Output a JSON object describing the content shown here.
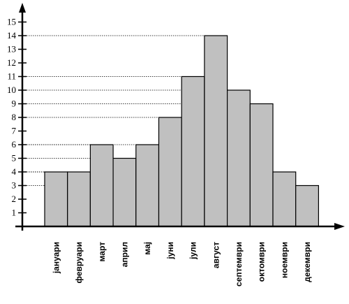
{
  "chart_data": {
    "type": "bar",
    "categories": [
      "јануари",
      "февруари",
      "март",
      "април",
      "мај",
      "јуни",
      "јули",
      "август",
      "септември",
      "октомври",
      "ноември",
      "декември"
    ],
    "values": [
      4,
      4,
      6,
      5,
      6,
      8,
      11,
      14,
      10,
      9,
      4,
      3
    ],
    "yticks": [
      1,
      2,
      3,
      4,
      5,
      6,
      7,
      8,
      9,
      10,
      11,
      12,
      13,
      14,
      15
    ],
    "ylim": [
      0,
      15
    ],
    "title": "",
    "xlabel": "",
    "ylabel": "",
    "grid": "dotted horizontal lines at bar tops",
    "bar_color": "#c0c0c0",
    "axis_color": "#000000"
  }
}
